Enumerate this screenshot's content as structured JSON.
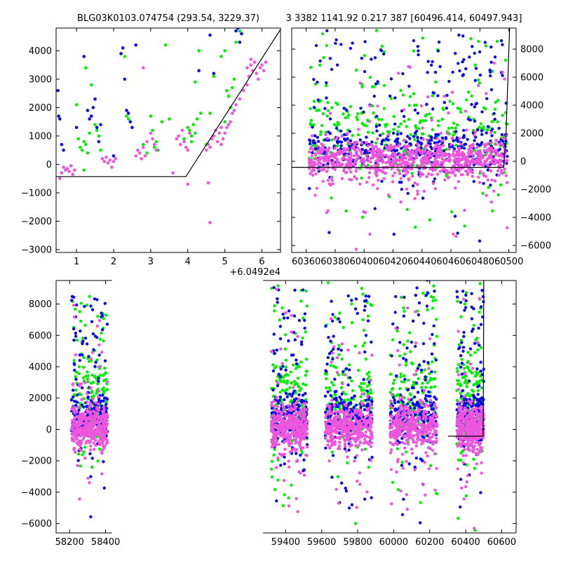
{
  "titles": {
    "left": "BLG03K0103.074754 (293.54, 3229.37)",
    "right": "3 3382 1141.92 0.217 387 [60496.414, 60497.943]"
  },
  "colors": {
    "green": "#00ee00",
    "blue": "#0a0ae6",
    "pink": "#ee55dd",
    "line": "#000000"
  },
  "chart_data": [
    {
      "id": "zoom",
      "type": "scatter",
      "x_offset_label": "+6.0492e4",
      "xlim": [
        0.45,
        6.5
      ],
      "ylim": [
        -3100,
        4800
      ],
      "xticks": [
        1,
        2,
        3,
        4,
        5,
        6
      ],
      "xtick_labels": [
        "1",
        "2",
        "3",
        "4",
        "5",
        "6"
      ],
      "yticks": [
        -3000,
        -2000,
        -1000,
        0,
        1000,
        2000,
        3000,
        4000
      ],
      "ytick_labels": [
        "−3000",
        "−2000",
        "−1000",
        "0",
        "1000",
        "2000",
        "3000",
        "4000"
      ],
      "model_line": {
        "x": [
          0.45,
          3.95,
          6.5
        ],
        "y": [
          -430,
          -430,
          4750
        ]
      },
      "series": [
        {
          "color": "green",
          "points": [
            [
              1.0,
              2100
            ],
            [
              1.05,
              900
            ],
            [
              1.1,
              600
            ],
            [
              1.15,
              500
            ],
            [
              1.2,
              800
            ],
            [
              1.25,
              700
            ],
            [
              1.3,
              400
            ],
            [
              1.35,
              1100
            ],
            [
              1.4,
              2800
            ],
            [
              1.5,
              1400
            ],
            [
              1.55,
              1200
            ],
            [
              1.6,
              1000
            ],
            [
              1.65,
              500
            ],
            [
              1.2,
              -200
            ],
            [
              1.25,
              3400
            ],
            [
              2.3,
              3800
            ],
            [
              2.35,
              1700
            ],
            [
              2.4,
              1600
            ],
            [
              2.8,
              700
            ],
            [
              2.9,
              400
            ],
            [
              3.0,
              1700
            ],
            [
              3.05,
              1200
            ],
            [
              3.1,
              600
            ],
            [
              3.15,
              800
            ],
            [
              3.2,
              500
            ],
            [
              3.3,
              1500
            ],
            [
              3.4,
              4200
            ],
            [
              3.5,
              1600
            ],
            [
              3.9,
              900
            ],
            [
              4.0,
              1300
            ],
            [
              4.05,
              1200
            ],
            [
              4.1,
              800
            ],
            [
              4.15,
              1400
            ],
            [
              4.2,
              1100
            ],
            [
              4.25,
              1600
            ],
            [
              4.3,
              4000
            ],
            [
              4.35,
              1800
            ],
            [
              4.5,
              700
            ],
            [
              4.6,
              1800
            ],
            [
              4.7,
              3100
            ],
            [
              4.9,
              3800
            ],
            [
              5.0,
              4000
            ],
            [
              5.05,
              2600
            ],
            [
              5.1,
              2400
            ],
            [
              5.15,
              2000
            ],
            [
              5.2,
              2700
            ],
            [
              5.25,
              3000
            ],
            [
              5.3,
              4300
            ],
            [
              5.4,
              4700
            ],
            [
              5.0,
              1500
            ],
            [
              4.2,
              2900
            ],
            [
              4.1,
              1000
            ]
          ]
        },
        {
          "color": "blue",
          "points": [
            [
              0.5,
              2600
            ],
            [
              0.52,
              1700
            ],
            [
              0.55,
              1600
            ],
            [
              0.6,
              700
            ],
            [
              0.65,
              500
            ],
            [
              1.2,
              3800
            ],
            [
              1.3,
              1900
            ],
            [
              1.35,
              1600
            ],
            [
              1.4,
              1700
            ],
            [
              1.45,
              2000
            ],
            [
              1.5,
              2300
            ],
            [
              1.55,
              1300
            ],
            [
              1.6,
              800
            ],
            [
              1.65,
              1400
            ],
            [
              2.2,
              3900
            ],
            [
              2.25,
              4100
            ],
            [
              2.3,
              3000
            ],
            [
              2.35,
              1900
            ],
            [
              2.4,
              1800
            ],
            [
              2.45,
              1500
            ],
            [
              2.5,
              1300
            ],
            [
              2.6,
              4200
            ],
            [
              4.3,
              3300
            ],
            [
              4.6,
              4550
            ],
            [
              4.7,
              3200
            ],
            [
              5.3,
              4700
            ],
            [
              5.35,
              4800
            ],
            [
              5.4,
              4300
            ],
            [
              5.45,
              4600
            ],
            [
              1.0,
              1300
            ],
            [
              2.0,
              300
            ]
          ]
        },
        {
          "color": "pink",
          "points": [
            [
              0.6,
              -300
            ],
            [
              0.65,
              -100
            ],
            [
              0.7,
              -200
            ],
            [
              0.75,
              -150
            ],
            [
              0.8,
              -250
            ],
            [
              0.85,
              -50
            ],
            [
              0.9,
              -350
            ],
            [
              0.95,
              -200
            ],
            [
              0.55,
              -500
            ],
            [
              1.7,
              200
            ],
            [
              1.75,
              100
            ],
            [
              1.8,
              250
            ],
            [
              1.85,
              50
            ],
            [
              1.9,
              150
            ],
            [
              1.95,
              -100
            ],
            [
              2.0,
              100
            ],
            [
              2.05,
              200
            ],
            [
              2.6,
              300
            ],
            [
              2.65,
              500
            ],
            [
              2.7,
              400
            ],
            [
              2.75,
              200
            ],
            [
              2.8,
              600
            ],
            [
              2.85,
              300
            ],
            [
              2.9,
              800
            ],
            [
              3.0,
              1100
            ],
            [
              3.05,
              900
            ],
            [
              3.1,
              700
            ],
            [
              3.15,
              500
            ],
            [
              3.7,
              900
            ],
            [
              3.75,
              1000
            ],
            [
              3.8,
              700
            ],
            [
              3.85,
              1200
            ],
            [
              3.9,
              800
            ],
            [
              3.95,
              600
            ],
            [
              4.0,
              500
            ],
            [
              4.05,
              1100
            ],
            [
              4.5,
              500
            ],
            [
              4.55,
              700
            ],
            [
              4.6,
              600
            ],
            [
              4.65,
              900
            ],
            [
              4.7,
              1000
            ],
            [
              4.75,
              1200
            ],
            [
              4.8,
              800
            ],
            [
              4.85,
              1100
            ],
            [
              4.9,
              1300
            ],
            [
              4.0,
              -700
            ],
            [
              3.6,
              -300
            ],
            [
              4.6,
              -2050
            ],
            [
              4.55,
              -650
            ],
            [
              2.8,
              3400
            ],
            [
              5.6,
              3400
            ],
            [
              5.65,
              3100
            ],
            [
              5.7,
              3500
            ],
            [
              5.75,
              3300
            ],
            [
              5.8,
              3600
            ],
            [
              5.85,
              3200
            ],
            [
              5.9,
              3000
            ],
            [
              5.95,
              3400
            ],
            [
              6.0,
              3500
            ],
            [
              6.05,
              3300
            ],
            [
              6.1,
              3600
            ],
            [
              5.6,
              2800
            ],
            [
              5.5,
              2600
            ],
            [
              5.4,
              2300
            ],
            [
              5.3,
              2100
            ],
            [
              5.7,
              3700
            ],
            [
              5.25,
              1900
            ],
            [
              5.2,
              1800
            ],
            [
              5.15,
              1500
            ],
            [
              5.1,
              1400
            ],
            [
              5.05,
              1300
            ],
            [
              5.0,
              1100
            ],
            [
              4.95,
              900
            ],
            [
              4.9,
              700
            ]
          ]
        }
      ]
    },
    {
      "id": "recent",
      "type": "scatter",
      "xlim": [
        60350,
        60505
      ],
      "ylim": [
        -6500,
        9500
      ],
      "xticks": [
        60360,
        60380,
        60400,
        60420,
        60440,
        60460,
        60480,
        60500
      ],
      "xtick_labels": [
        "60360",
        "60380",
        "60400",
        "60420",
        "60440",
        "60460",
        "60480",
        "60500"
      ],
      "yticks": [
        -6000,
        -4000,
        -2000,
        0,
        2000,
        4000,
        6000,
        8000
      ],
      "ytick_labels": [
        "−6000",
        "−4000",
        "−2000",
        "0",
        "2000",
        "4000",
        "6000",
        "8000"
      ],
      "model_line": {
        "x": [
          60350,
          60496.4,
          60497.9,
          60500.5
        ],
        "y": [
          -430,
          -430,
          1500,
          9500
        ]
      },
      "segments": [
        [
          60362,
          60499,
          9000
        ]
      ]
    },
    {
      "id": "full",
      "type": "scatter",
      "xlim": [
        58125,
        60680
      ],
      "ylim": [
        -6600,
        9500
      ],
      "broken_axis_at": [
        58435,
        59275
      ],
      "xticks": [
        58200,
        58400,
        59400,
        59600,
        59800,
        60000,
        60200,
        60400,
        60600
      ],
      "xtick_labels": [
        "58200",
        "58400",
        "59400",
        "59600",
        "59800",
        "60000",
        "60200",
        "60400",
        "60600"
      ],
      "yticks": [
        -6000,
        -4000,
        -2000,
        0,
        2000,
        4000,
        6000,
        8000
      ],
      "ytick_labels": [
        "−6000",
        "−4000",
        "−2000",
        "0",
        "2000",
        "4000",
        "6000",
        "8000"
      ],
      "model_line": {
        "x": [
          60302,
          60496.4,
          60497.9,
          60500.5
        ],
        "y": [
          -430,
          -430,
          1500,
          9500
        ]
      },
      "segments": [
        [
          58210,
          58410,
          8500
        ],
        [
          59320,
          59520,
          9200
        ],
        [
          59620,
          59880,
          9000
        ],
        [
          59980,
          60240,
          9200
        ],
        [
          60350,
          60500,
          9000
        ]
      ]
    }
  ]
}
